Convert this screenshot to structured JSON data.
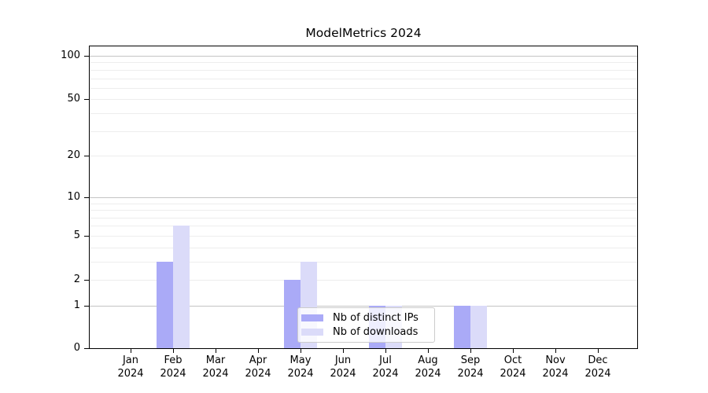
{
  "chart_data": {
    "type": "bar",
    "title": "ModelMetrics 2024",
    "categories": [
      "Jan",
      "Feb",
      "Mar",
      "Apr",
      "May",
      "Jun",
      "Jul",
      "Aug",
      "Sep",
      "Oct",
      "Nov",
      "Dec"
    ],
    "year_label": "2024",
    "series": [
      {
        "name": "Nb of distinct IPs",
        "color": "#aaaaf7",
        "values": [
          0,
          3,
          0,
          0,
          2,
          0,
          1,
          0,
          1,
          0,
          0,
          0
        ]
      },
      {
        "name": "Nb of downloads",
        "color": "#dbdbf9",
        "values": [
          0,
          6,
          0,
          0,
          3,
          0,
          1,
          0,
          1,
          0,
          0,
          0
        ]
      }
    ],
    "yticks": [
      0,
      1,
      2,
      5,
      10,
      20,
      50,
      100
    ],
    "yscale": "log1p",
    "ylim": [
      0,
      116
    ],
    "xlabel": "",
    "ylabel": "",
    "grid": {
      "major_lines": [
        1,
        10,
        100
      ],
      "minor_lines": [
        2,
        3,
        4,
        5,
        6,
        7,
        8,
        9,
        20,
        30,
        40,
        50,
        60,
        70,
        80,
        90
      ],
      "major_color": "#c4c4c4",
      "minor_color": "#ededed"
    },
    "legend_position": "lower center",
    "axis_color": "#000000",
    "text_color": "#000000",
    "background_color": "#ffffff"
  }
}
